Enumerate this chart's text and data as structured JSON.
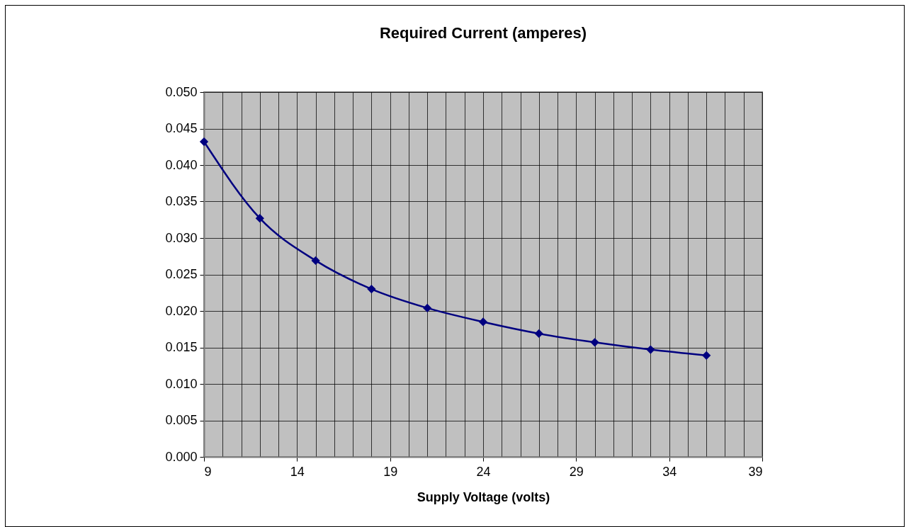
{
  "chart_data": {
    "type": "line",
    "title": "Required Current (amperes)",
    "xlabel": "Supply Voltage (volts)",
    "x": [
      9,
      12,
      15,
      18,
      21,
      24,
      27,
      30,
      33,
      36
    ],
    "series": [
      {
        "color": "#000080",
        "values": [
          0.0432,
          0.0327,
          0.0269,
          0.023,
          0.0204,
          0.0185,
          0.0169,
          0.0157,
          0.0147,
          0.0139
        ]
      }
    ],
    "xlim": [
      9,
      39
    ],
    "xticks": [
      9,
      {
        "value": 10,
        "label": null
      },
      {
        "value": 11,
        "label": null
      },
      {
        "value": 12,
        "label": null
      },
      {
        "value": 13,
        "label": null
      },
      14,
      {
        "value": 15,
        "label": null
      },
      {
        "value": 16,
        "label": null
      },
      {
        "value": 17,
        "label": null
      },
      {
        "value": 18,
        "label": null
      },
      19,
      {
        "value": 20,
        "label": null
      },
      {
        "value": 21,
        "label": null
      },
      {
        "value": 22,
        "label": null
      },
      {
        "value": 23,
        "label": null
      },
      24,
      {
        "value": 25,
        "label": null
      },
      {
        "value": 26,
        "label": null
      },
      {
        "value": 27,
        "label": null
      },
      {
        "value": 28,
        "label": null
      },
      29,
      {
        "value": 30,
        "label": null
      },
      {
        "value": 31,
        "label": null
      },
      {
        "value": 32,
        "label": null
      },
      {
        "value": 33,
        "label": null
      },
      34,
      {
        "value": 35,
        "label": null
      },
      {
        "value": 36,
        "label": null
      },
      {
        "value": 37,
        "label": null
      },
      {
        "value": 38,
        "label": null
      },
      39
    ],
    "ylim": [
      0,
      0.05
    ],
    "yticks": [
      {
        "value": 0,
        "label": "0.000"
      },
      {
        "value": 0.005,
        "label": "0.005"
      },
      {
        "value": 0.01,
        "label": "0.010"
      },
      {
        "value": 0.015,
        "label": "0.015"
      },
      {
        "value": 0.02,
        "label": "0.020"
      },
      {
        "value": 0.025,
        "label": "0.025"
      },
      {
        "value": 0.03,
        "label": "0.030"
      },
      {
        "value": 0.035,
        "label": "0.035"
      },
      {
        "value": 0.04,
        "label": "0.040"
      },
      {
        "value": 0.045,
        "label": "0.045"
      },
      {
        "value": 0.05,
        "label": "0.050"
      }
    ],
    "grid": true,
    "marker": "diamond",
    "line_style": "solid",
    "legend": false
  }
}
